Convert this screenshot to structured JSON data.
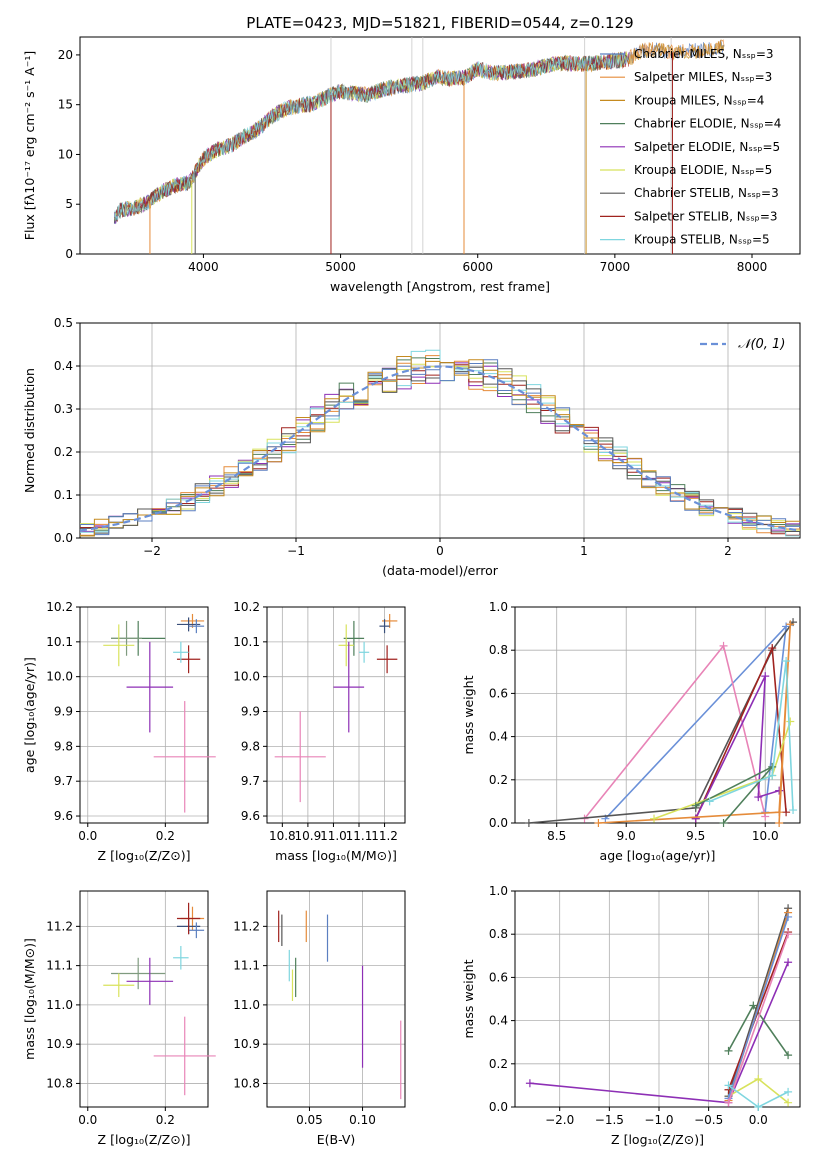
{
  "figure_title": "PLATE=0423, MJD=51821, FIBERID=0544, z=0.129",
  "chart_data": [
    {
      "id": "spectrum",
      "type": "line",
      "xlabel": "wavelength [Angstrom, rest frame]",
      "ylabel": "Flux [fλ10⁻¹⁷ erg cm⁻² s⁻¹ A⁻¹]",
      "xlim": [
        3100,
        8350
      ],
      "ylim": [
        0,
        21.8
      ],
      "xticks": [
        "4000",
        "5000",
        "6000",
        "7000",
        "8000"
      ],
      "yticks": [
        "0",
        "5",
        "10",
        "15",
        "20"
      ],
      "legend_placement": "upper right",
      "series": [
        {
          "name": "Chabrier MILES, Nₛₛₚ=3",
          "color": "#5b7fc0"
        },
        {
          "name": "Salpeter MILES, Nₛₛₚ=3",
          "color": "#e58b3a"
        },
        {
          "name": "Kroupa MILES, Nₛₛₚ=4",
          "color": "#c58a1f"
        },
        {
          "name": "Chabrier ELODIE, Nₛₛₚ=4",
          "color": "#4f7f5b"
        },
        {
          "name": "Salpeter ELODIE, Nₛₛₚ=5",
          "color": "#8d2fb5"
        },
        {
          "name": "Kroupa ELODIE, Nₛₛₚ=5",
          "color": "#d8e25c"
        },
        {
          "name": "Chabrier STELIB, Nₛₛₚ=3",
          "color": "#555555"
        },
        {
          "name": "Salpeter STELIB, Nₛₛₚ=3",
          "color": "#a0231f"
        },
        {
          "name": "Kroupa STELIB, Nₛₛₚ=5",
          "color": "#7fd6df"
        }
      ],
      "data_x": [
        3350,
        3400,
        3500,
        3600,
        3700,
        3800,
        3900,
        4000,
        4100,
        4200,
        4300,
        4400,
        4500,
        4600,
        4700,
        4800,
        4900,
        5000,
        5100,
        5200,
        5300,
        5400,
        5500,
        5600,
        5700,
        5800,
        5900,
        6000,
        6100,
        6200,
        6300,
        6400,
        6500,
        6600,
        6700,
        6800,
        6900,
        7000,
        7100,
        7200,
        7300,
        7400,
        7500,
        7600,
        7700,
        7800
      ],
      "data_flux": [
        3.5,
        4.5,
        4.6,
        5.2,
        6.3,
        6.9,
        7.2,
        9.6,
        10.5,
        10.9,
        11.8,
        12.6,
        13.8,
        14.6,
        14.9,
        15.1,
        15.8,
        16.4,
        16.1,
        16.0,
        16.5,
        16.8,
        17.0,
        17.2,
        17.8,
        17.6,
        17.7,
        18.6,
        18.2,
        18.2,
        18.4,
        18.5,
        18.9,
        19.2,
        19.1,
        19.1,
        19.2,
        19.4,
        19.6,
        20.4,
        20.6,
        20.2,
        20.4,
        20.4,
        20.6,
        21.0
      ]
    },
    {
      "id": "residuals",
      "type": "histogram",
      "xlabel": "(data-model)/error",
      "ylabel": "Normed distribution",
      "xlim": [
        -2.5,
        2.5
      ],
      "ylim": [
        0,
        0.5
      ],
      "xticks": [
        "−2",
        "−1",
        "0",
        "1",
        "2"
      ],
      "yticks": [
        "0.0",
        "0.1",
        "0.2",
        "0.3",
        "0.4",
        "0.5"
      ],
      "legend": "𝒩(0, 1)",
      "gaussian": {
        "mean": 0,
        "sigma": 1,
        "color": "#6a90d8"
      },
      "bin_width": 0.1
    },
    {
      "id": "age-vs-Z",
      "type": "scatter",
      "xlabel": "Z [log₁₀(Z/Z⊙)]",
      "ylabel": "age  [log₁₀(age/yr)]",
      "xlim": [
        -0.02,
        0.31
      ],
      "ylim": [
        9.58,
        10.2
      ],
      "xticks": [
        "0.0",
        "0.2"
      ],
      "yticks": [
        "9.6",
        "9.7",
        "9.8",
        "9.9",
        "10.0",
        "10.1",
        "10.2"
      ],
      "points": [
        {
          "x": 0.13,
          "y": 10.11,
          "xerr": 0.07,
          "yerr": 0.05,
          "color": "#4f7f5b"
        },
        {
          "x": 0.1,
          "y": 10.11,
          "xerr": 0.04,
          "yerr": 0.05,
          "color": "#7f9b7f"
        },
        {
          "x": 0.08,
          "y": 10.09,
          "xerr": 0.04,
          "yerr": 0.06,
          "color": "#d8e25c"
        },
        {
          "x": 0.16,
          "y": 9.97,
          "xerr": 0.06,
          "yerr": 0.13,
          "color": "#8d2fb5"
        },
        {
          "x": 0.25,
          "y": 9.77,
          "xerr": 0.08,
          "yerr": 0.16,
          "color": "#e884b7"
        },
        {
          "x": 0.27,
          "y": 10.16,
          "xerr": 0.03,
          "yerr": 0.02,
          "color": "#e58b3a"
        },
        {
          "x": 0.26,
          "y": 10.15,
          "xerr": 0.03,
          "yerr": 0.02,
          "color": "#3a4f7a"
        },
        {
          "x": 0.28,
          "y": 10.145,
          "xerr": 0.02,
          "yerr": 0.02,
          "color": "#5b7fc0"
        },
        {
          "x": 0.26,
          "y": 10.05,
          "xerr": 0.03,
          "yerr": 0.04,
          "color": "#a0231f"
        },
        {
          "x": 0.24,
          "y": 10.07,
          "xerr": 0.02,
          "yerr": 0.03,
          "color": "#7fd6df"
        }
      ]
    },
    {
      "id": "age-vs-mass",
      "type": "scatter",
      "xlabel": "mass [log₁₀(M/M⊙)]",
      "ylabel": "",
      "xlim": [
        10.74,
        11.28
      ],
      "ylim": [
        9.58,
        10.2
      ],
      "xticks": [
        "10.8",
        "10.9",
        "11.0",
        "11.1",
        "11.2"
      ],
      "yticks": [
        "9.6",
        "9.7",
        "9.8",
        "9.9",
        "10.0",
        "10.1",
        "10.2"
      ],
      "points": [
        {
          "x": 11.08,
          "y": 10.11,
          "xerr": 0.04,
          "yerr": 0.05,
          "color": "#4f7f5b"
        },
        {
          "x": 11.05,
          "y": 10.09,
          "xerr": 0.03,
          "yerr": 0.06,
          "color": "#d8e25c"
        },
        {
          "x": 11.06,
          "y": 9.97,
          "xerr": 0.06,
          "yerr": 0.13,
          "color": "#8d2fb5"
        },
        {
          "x": 10.87,
          "y": 9.77,
          "xerr": 0.1,
          "yerr": 0.13,
          "color": "#e884b7"
        },
        {
          "x": 11.22,
          "y": 10.16,
          "xerr": 0.03,
          "yerr": 0.02,
          "color": "#e58b3a"
        },
        {
          "x": 11.2,
          "y": 10.145,
          "xerr": 0.02,
          "yerr": 0.02,
          "color": "#3a4f7a"
        },
        {
          "x": 11.21,
          "y": 10.05,
          "xerr": 0.04,
          "yerr": 0.04,
          "color": "#a0231f"
        },
        {
          "x": 11.12,
          "y": 10.07,
          "xerr": 0.02,
          "yerr": 0.03,
          "color": "#7fd6df"
        }
      ]
    },
    {
      "id": "mass-weight-vs-age",
      "type": "line",
      "xlabel": "age  [log₁₀(age/yr)]",
      "ylabel": "mass weight",
      "xlim": [
        8.2,
        10.25
      ],
      "ylim": [
        0,
        1.0
      ],
      "xticks": [
        "8.5",
        "9.0",
        "9.5",
        "10.0"
      ],
      "yticks": [
        "0.0",
        "0.2",
        "0.4",
        "0.6",
        "0.8",
        "1.0"
      ],
      "series": [
        {
          "color": "#6a90d8",
          "x": [
            8.85,
            10.15,
            10.0
          ],
          "y": [
            0.02,
            0.91,
            0.05
          ]
        },
        {
          "color": "#e884b7",
          "x": [
            8.7,
            9.7,
            10.0
          ],
          "y": [
            0.02,
            0.82,
            0.03
          ]
        },
        {
          "color": "#555555",
          "x": [
            8.3,
            9.5,
            10.05,
            10.2
          ],
          "y": [
            0.0,
            0.07,
            0.8,
            0.93
          ]
        },
        {
          "color": "#a0231f",
          "x": [
            9.5,
            10.05,
            10.15
          ],
          "y": [
            0.02,
            0.81,
            0.05
          ]
        },
        {
          "color": "#8d2fb5",
          "x": [
            9.5,
            10.0,
            9.95,
            10.1
          ],
          "y": [
            0.02,
            0.68,
            0.12,
            0.15
          ]
        },
        {
          "color": "#e58b3a",
          "x": [
            8.8,
            10.1,
            10.18,
            10.1
          ],
          "y": [
            0.0,
            0.05,
            0.92,
            0.0
          ]
        },
        {
          "color": "#d8e25c",
          "x": [
            9.2,
            10.05,
            10.18
          ],
          "y": [
            0.02,
            0.22,
            0.47
          ]
        },
        {
          "color": "#4f7f5b",
          "x": [
            9.5,
            10.05,
            9.7
          ],
          "y": [
            0.08,
            0.26,
            0.0
          ]
        },
        {
          "color": "#7fd6df",
          "x": [
            9.6,
            10.05,
            10.15,
            10.2
          ],
          "y": [
            0.1,
            0.22,
            0.75,
            0.06
          ]
        }
      ]
    },
    {
      "id": "mass-vs-Z",
      "type": "scatter",
      "xlabel": "Z [log₁₀(Z/Z⊙)]",
      "ylabel": "mass [log₁₀(M/M⊙)]",
      "xlim": [
        -0.02,
        0.31
      ],
      "ylim": [
        10.74,
        11.29
      ],
      "xticks": [
        "0.0",
        "0.2"
      ],
      "yticks": [
        "10.8",
        "10.9",
        "11.0",
        "11.1",
        "11.2"
      ],
      "points": [
        {
          "x": 0.13,
          "y": 11.08,
          "xerr": 0.07,
          "yerr": 0.04,
          "color": "#7f9b7f"
        },
        {
          "x": 0.08,
          "y": 11.05,
          "xerr": 0.04,
          "yerr": 0.03,
          "color": "#d8e25c"
        },
        {
          "x": 0.16,
          "y": 11.06,
          "xerr": 0.06,
          "yerr": 0.06,
          "color": "#8d2fb5"
        },
        {
          "x": 0.25,
          "y": 10.87,
          "xerr": 0.08,
          "yerr": 0.1,
          "color": "#e884b7"
        },
        {
          "x": 0.27,
          "y": 11.22,
          "xerr": 0.03,
          "yerr": 0.03,
          "color": "#e58b3a"
        },
        {
          "x": 0.26,
          "y": 11.2,
          "xerr": 0.03,
          "yerr": 0.02,
          "color": "#3a4f7a"
        },
        {
          "x": 0.28,
          "y": 11.19,
          "xerr": 0.02,
          "yerr": 0.02,
          "color": "#5b7fc0"
        },
        {
          "x": 0.26,
          "y": 11.22,
          "xerr": 0.03,
          "yerr": 0.04,
          "color": "#a0231f"
        },
        {
          "x": 0.24,
          "y": 11.12,
          "xerr": 0.02,
          "yerr": 0.03,
          "color": "#7fd6df"
        }
      ]
    },
    {
      "id": "mass-vs-ebv",
      "type": "scatter",
      "xlabel": "E(B-V)",
      "ylabel": "",
      "xlim": [
        0.01,
        0.14
      ],
      "ylim": [
        10.74,
        11.29
      ],
      "xticks": [
        "0.05",
        "0.10"
      ],
      "yticks": [
        "10.8",
        "10.9",
        "11.0",
        "11.1",
        "11.2"
      ],
      "points": [
        {
          "x": 0.021,
          "y": 11.2,
          "yerr": 0.04,
          "color": "#a0231f"
        },
        {
          "x": 0.024,
          "y": 11.19,
          "yerr": 0.04,
          "color": "#555555"
        },
        {
          "x": 0.031,
          "y": 11.1,
          "yerr": 0.04,
          "color": "#7fd6df"
        },
        {
          "x": 0.034,
          "y": 11.05,
          "yerr": 0.04,
          "color": "#d8e25c"
        },
        {
          "x": 0.037,
          "y": 11.07,
          "yerr": 0.05,
          "color": "#4f7f5b"
        },
        {
          "x": 0.047,
          "y": 11.2,
          "yerr": 0.04,
          "color": "#e58b3a"
        },
        {
          "x": 0.067,
          "y": 11.17,
          "yerr": 0.06,
          "color": "#5b7fc0"
        },
        {
          "x": 0.1,
          "y": 10.97,
          "yerr": 0.13,
          "color": "#8d2fb5"
        },
        {
          "x": 0.136,
          "y": 10.86,
          "yerr": 0.1,
          "color": "#e884b7"
        }
      ]
    },
    {
      "id": "mass-weight-vs-Z",
      "type": "line",
      "xlabel": "Z [log₁₀(Z/Z⊙)]",
      "ylabel": "mass weight",
      "xlim": [
        -2.45,
        0.42
      ],
      "ylim": [
        0,
        1.0
      ],
      "xticks": [
        "−2.0",
        "−1.5",
        "−1.0",
        "−0.5",
        "0.0"
      ],
      "yticks": [
        "0.0",
        "0.2",
        "0.4",
        "0.6",
        "0.8",
        "1.0"
      ],
      "series": [
        {
          "color": "#8d2fb5",
          "x": [
            -2.3,
            -0.3,
            0.3
          ],
          "y": [
            0.11,
            0.02,
            0.67
          ]
        },
        {
          "color": "#4f7f5b",
          "x": [
            -0.3,
            -0.05,
            0.3
          ],
          "y": [
            0.26,
            0.47,
            0.24
          ]
        },
        {
          "color": "#d8e25c",
          "x": [
            -0.3,
            0.0,
            0.3
          ],
          "y": [
            0.05,
            0.13,
            0.02
          ]
        },
        {
          "color": "#555555",
          "x": [
            -0.3,
            0.3
          ],
          "y": [
            0.05,
            0.92
          ]
        },
        {
          "color": "#a0231f",
          "x": [
            -0.3,
            0.3
          ],
          "y": [
            0.08,
            0.81
          ]
        },
        {
          "color": "#e58b3a",
          "x": [
            -0.3,
            0.3
          ],
          "y": [
            0.03,
            0.9
          ]
        },
        {
          "color": "#6a90d8",
          "x": [
            -0.3,
            0.3
          ],
          "y": [
            0.04,
            0.88
          ]
        },
        {
          "color": "#e884b7",
          "x": [
            -0.3,
            0.3
          ],
          "y": [
            0.02,
            0.8
          ]
        },
        {
          "color": "#7fd6df",
          "x": [
            -0.3,
            0.0,
            0.3
          ],
          "y": [
            0.1,
            0.0,
            0.07
          ]
        }
      ]
    }
  ]
}
